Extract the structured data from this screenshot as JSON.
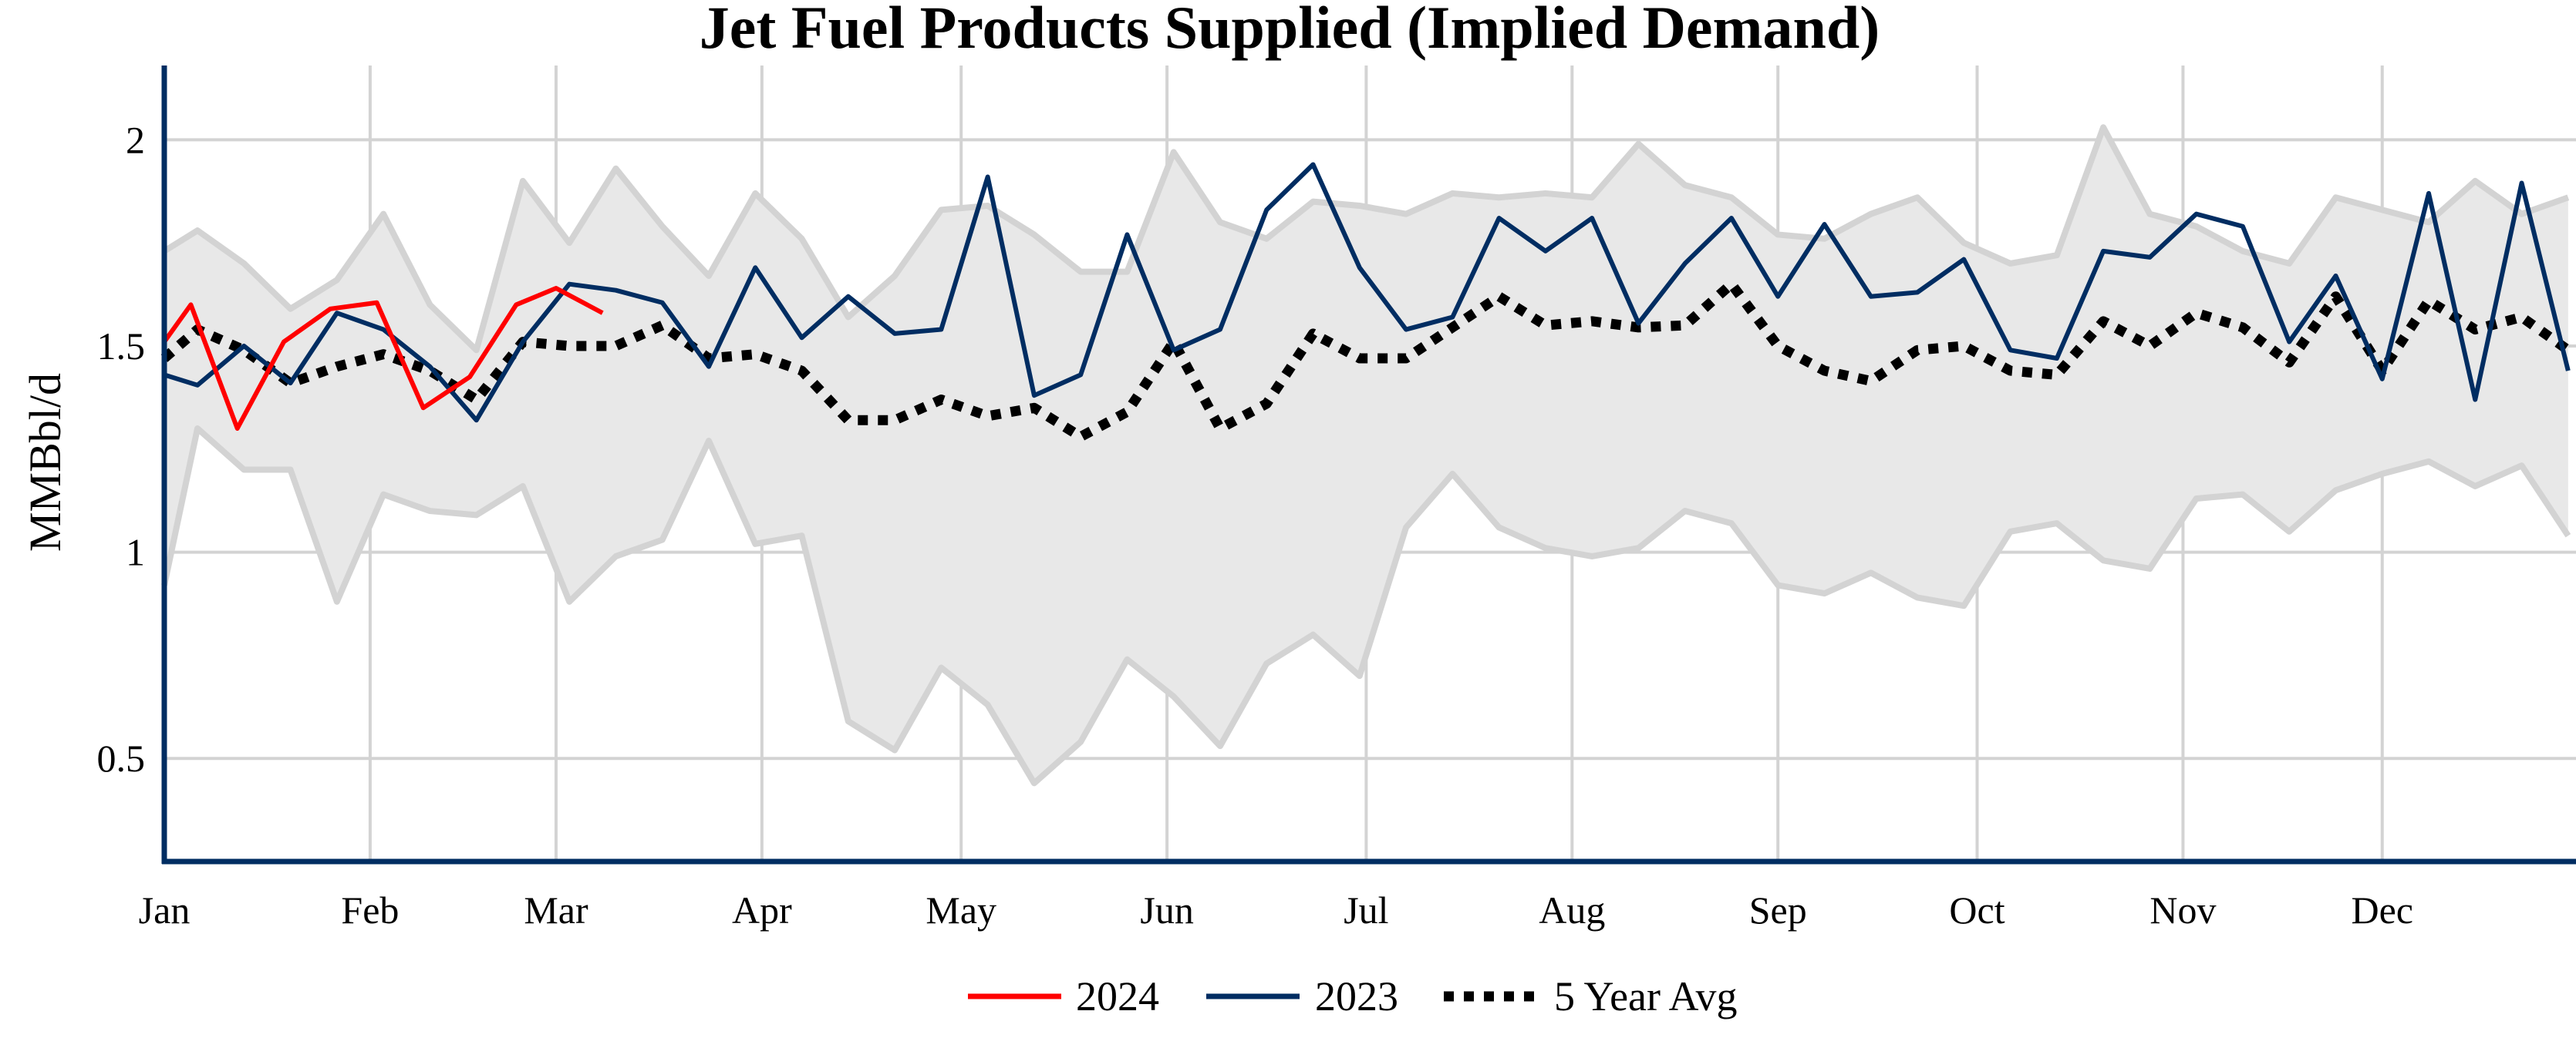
{
  "chart_data": {
    "type": "line",
    "title": "Jet Fuel Products Supplied (Implied Demand)",
    "xlabel": "",
    "ylabel": "MMBbl/d",
    "ylim": [
      0.25,
      2.18
    ],
    "xlim": [
      "01-01",
      "12-31"
    ],
    "grid": true,
    "legend_position": "bottom-center",
    "x_ticks": [
      {
        "label": "Jan",
        "date": "01-01"
      },
      {
        "label": "Feb",
        "date": "02-01"
      },
      {
        "label": "Mar",
        "date": "03-01"
      },
      {
        "label": "Apr",
        "date": "04-01"
      },
      {
        "label": "May",
        "date": "05-01"
      },
      {
        "label": "Jun",
        "date": "06-01"
      },
      {
        "label": "Jul",
        "date": "07-01"
      },
      {
        "label": "Aug",
        "date": "08-01"
      },
      {
        "label": "Sep",
        "date": "09-01"
      },
      {
        "label": "Oct",
        "date": "10-01"
      },
      {
        "label": "Nov",
        "date": "11-01"
      },
      {
        "label": "Dec",
        "date": "12-01"
      }
    ],
    "y_ticks": [
      {
        "value": 0.5,
        "label": "0.5"
      },
      {
        "value": 1,
        "label": "1"
      },
      {
        "value": 1.5,
        "label": "1.5"
      },
      {
        "value": 2,
        "label": "2"
      }
    ],
    "x": [
      "01-01",
      "01-06",
      "01-13",
      "01-20",
      "01-27",
      "02-03",
      "02-10",
      "02-17",
      "02-24",
      "03-03",
      "03-10",
      "03-17",
      "03-24",
      "03-31",
      "04-07",
      "04-14",
      "04-21",
      "04-28",
      "05-05",
      "05-12",
      "05-19",
      "05-26",
      "06-02",
      "06-09",
      "06-16",
      "06-23",
      "06-30",
      "07-07",
      "07-14",
      "07-21",
      "07-28",
      "08-04",
      "08-11",
      "08-18",
      "08-25",
      "09-01",
      "09-08",
      "09-15",
      "09-22",
      "09-29",
      "10-06",
      "10-13",
      "10-20",
      "10-27",
      "11-03",
      "11-10",
      "11-17",
      "11-24",
      "12-01",
      "12-08",
      "12-15",
      "12-22",
      "12-29"
    ],
    "range_band": {
      "upper": [
        1.73,
        1.78,
        1.7,
        1.59,
        1.66,
        1.82,
        1.6,
        1.49,
        1.9,
        1.75,
        1.93,
        1.79,
        1.67,
        1.87,
        1.76,
        1.57,
        1.67,
        1.83,
        1.84,
        1.77,
        1.68,
        1.68,
        1.97,
        1.8,
        1.76,
        1.85,
        1.84,
        1.82,
        1.87,
        1.86,
        1.87,
        1.86,
        1.99,
        1.89,
        1.86,
        1.77,
        1.76,
        1.82,
        1.86,
        1.75,
        1.7,
        1.72,
        2.03,
        1.82,
        1.79,
        1.73,
        1.7,
        1.86,
        1.83,
        1.8,
        1.9,
        1.82,
        1.86
      ],
      "lower": [
        0.92,
        1.3,
        1.2,
        1.2,
        0.88,
        1.14,
        1.1,
        1.09,
        1.16,
        0.88,
        0.99,
        1.03,
        1.27,
        1.02,
        1.04,
        0.59,
        0.52,
        0.72,
        0.63,
        0.44,
        0.54,
        0.74,
        0.65,
        0.53,
        0.73,
        0.8,
        0.7,
        1.06,
        1.19,
        1.06,
        1.01,
        0.99,
        1.01,
        1.1,
        1.07,
        0.92,
        0.9,
        0.95,
        0.89,
        0.87,
        1.05,
        1.07,
        0.98,
        0.96,
        1.13,
        1.14,
        1.05,
        1.15,
        1.19,
        1.22,
        1.16,
        1.21,
        1.04
      ],
      "fill_color": "#e8e8e8",
      "edge_color": "#d3d3d3"
    },
    "series": [
      {
        "name": "5 Year Avg",
        "color": "#000000",
        "style": "dotted",
        "values": [
          1.47,
          1.54,
          1.49,
          1.41,
          1.45,
          1.48,
          1.44,
          1.37,
          1.51,
          1.5,
          1.5,
          1.55,
          1.47,
          1.48,
          1.44,
          1.32,
          1.32,
          1.37,
          1.33,
          1.35,
          1.28,
          1.34,
          1.51,
          1.3,
          1.36,
          1.53,
          1.47,
          1.47,
          1.545,
          1.62,
          1.55,
          1.56,
          1.545,
          1.55,
          1.65,
          1.5,
          1.44,
          1.415,
          1.49,
          1.5,
          1.44,
          1.43,
          1.56,
          1.5,
          1.58,
          1.545,
          1.46,
          1.62,
          1.44,
          1.61,
          1.54,
          1.57,
          1.49
        ]
      },
      {
        "name": "2023",
        "color": "#002d62",
        "style": "solid",
        "values": [
          1.43,
          1.405,
          1.5,
          1.41,
          1.58,
          1.54,
          1.45,
          1.32,
          1.51,
          1.65,
          1.635,
          1.605,
          1.45,
          1.69,
          1.52,
          1.62,
          1.53,
          1.54,
          1.91,
          1.38,
          1.43,
          1.77,
          1.49,
          1.54,
          1.83,
          1.94,
          1.69,
          1.54,
          1.57,
          1.81,
          1.73,
          1.81,
          1.555,
          1.7,
          1.81,
          1.62,
          1.795,
          1.62,
          1.63,
          1.71,
          1.49,
          1.47,
          1.73,
          1.715,
          1.82,
          1.79,
          1.51,
          1.67,
          1.42,
          1.87,
          1.37,
          1.895,
          1.44
        ]
      },
      {
        "name": "2024",
        "color": "#ff0000",
        "style": "solid",
        "x": [
          "01-01",
          "01-05",
          "01-12",
          "01-19",
          "01-26",
          "02-02",
          "02-09",
          "02-16",
          "02-23",
          "03-01",
          "03-08"
        ],
        "values": [
          1.51,
          1.6,
          1.3,
          1.51,
          1.59,
          1.605,
          1.35,
          1.425,
          1.6,
          1.64,
          1.58
        ]
      }
    ],
    "legend": [
      {
        "label": "2024",
        "color": "#ff0000",
        "style": "solid"
      },
      {
        "label": "2023",
        "color": "#002d62",
        "style": "solid"
      },
      {
        "label": "5 Year Avg",
        "color": "#000000",
        "style": "dotted"
      }
    ],
    "axis_color": "#002d62",
    "grid_color": "#d3d3d3"
  }
}
